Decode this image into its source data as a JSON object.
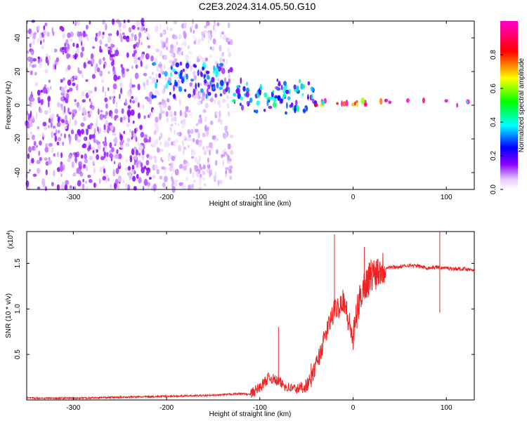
{
  "title": "C2E3.2024.314.05.50.G10",
  "chart_data": [
    {
      "type": "heatmap",
      "xlabel": "Height of straight line (km)",
      "ylabel": "Frequency (Hz)",
      "xlim": [
        -350,
        130
      ],
      "ylim": [
        -50,
        50
      ],
      "xticks": [
        -300,
        -200,
        -100,
        0,
        100
      ],
      "yticks": [
        -40,
        -20,
        0,
        20,
        40
      ],
      "colorbar": {
        "label": "Normalized spectral amplitude",
        "range": [
          0,
          1
        ],
        "ticks": [
          0.0,
          0.2,
          0.4,
          0.6,
          0.8
        ],
        "colors": [
          "#ffffff",
          "#cc99ff",
          "#8800ff",
          "#0000ff",
          "#00ffff",
          "#00ff00",
          "#ffff00",
          "#ff0000",
          "#ff00cc"
        ]
      },
      "regions": [
        {
          "x_from": -350,
          "x_to": -215,
          "freq_from": -50,
          "freq_to": 50,
          "amplitude": 0.1
        },
        {
          "x_from": -215,
          "x_to": -130,
          "freq_from": -50,
          "freq_to": 50,
          "amplitude": 0.06
        },
        {
          "x_from": -215,
          "x_to": -130,
          "freq_from": 5,
          "freq_to": 25,
          "amplitude": 0.25
        },
        {
          "x_from": -130,
          "x_to": -40,
          "freq_from": -5,
          "freq_to": 15,
          "amplitude": 0.3
        },
        {
          "x_from": -40,
          "x_to": 130,
          "freq_from": 0,
          "freq_to": 3,
          "amplitude": 0.8
        }
      ]
    },
    {
      "type": "line",
      "xlabel": "Height of straight line (km)",
      "ylabel": "SNR (10 * v/v)",
      "yscale_label": "(x10",
      "yscale_exp": "4",
      "xlim": [
        -350,
        130
      ],
      "ylim": [
        0,
        1.85
      ],
      "xticks": [
        -300,
        -200,
        -100,
        0,
        100
      ],
      "yticks": [
        0.5,
        1.0,
        1.5
      ],
      "ytick_labels": [
        "0.5",
        "1.0",
        "1.5"
      ],
      "color": "#ee2222",
      "series": [
        {
          "x": [
            -350,
            -300,
            -250,
            -200,
            -150,
            -120,
            -110,
            -100,
            -90,
            -80,
            -70,
            -60,
            -50,
            -45,
            -40,
            -35,
            -30,
            -25,
            -20,
            -15,
            -10,
            -5,
            0,
            5,
            10,
            20,
            30,
            40,
            50,
            60,
            70,
            80,
            90,
            95,
            100,
            110,
            120,
            130
          ],
          "values": [
            0.02,
            0.02,
            0.03,
            0.04,
            0.05,
            0.07,
            0.06,
            0.14,
            0.25,
            0.2,
            0.14,
            0.12,
            0.16,
            0.22,
            0.38,
            0.52,
            0.7,
            0.85,
            0.98,
            1.04,
            1.12,
            0.86,
            0.68,
            1.0,
            1.22,
            1.38,
            1.45,
            1.46,
            1.46,
            1.48,
            1.47,
            1.45,
            1.46,
            1.45,
            1.45,
            1.44,
            1.44,
            1.43
          ]
        }
      ],
      "spikes": [
        {
          "x": -20,
          "value": 1.82
        },
        {
          "x": 12,
          "value": 1.68
        },
        {
          "x": 93,
          "value": 1.85
        },
        {
          "x": 93,
          "value": 0.96
        },
        {
          "x": -80,
          "value": 0.8
        },
        {
          "x": -45,
          "value": 0.4
        },
        {
          "x": 0,
          "value": 0.55
        }
      ]
    }
  ]
}
